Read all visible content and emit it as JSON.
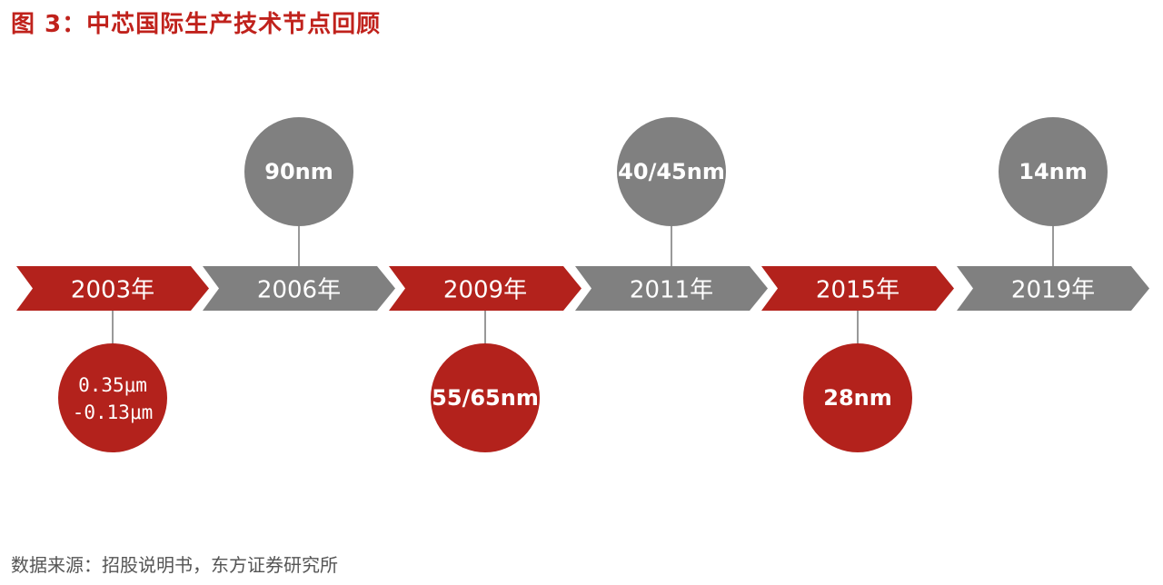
{
  "title": "图 3：中芯国际生产技术节点回顾",
  "source": "数据来源：招股说明书，东方证券研究所",
  "colors": {
    "red": "#b3221c",
    "gray": "#808080",
    "connector": "#999999",
    "title": "#c0221c"
  },
  "milestones": [
    {
      "year": "2003年",
      "color": "red",
      "position": "below",
      "node_lines": [
        "0.35μm",
        "-0.13μm"
      ]
    },
    {
      "year": "2006年",
      "color": "gray",
      "position": "above",
      "node_lines": [
        "90nm"
      ]
    },
    {
      "year": "2009年",
      "color": "red",
      "position": "below",
      "node_lines": [
        "55/65nm"
      ]
    },
    {
      "year": "2011年",
      "color": "gray",
      "position": "above",
      "node_lines": [
        "40/45nm"
      ]
    },
    {
      "year": "2015年",
      "color": "red",
      "position": "below",
      "node_lines": [
        "28nm"
      ]
    },
    {
      "year": "2019年",
      "color": "gray",
      "position": "above",
      "node_lines": [
        "14nm"
      ]
    }
  ]
}
